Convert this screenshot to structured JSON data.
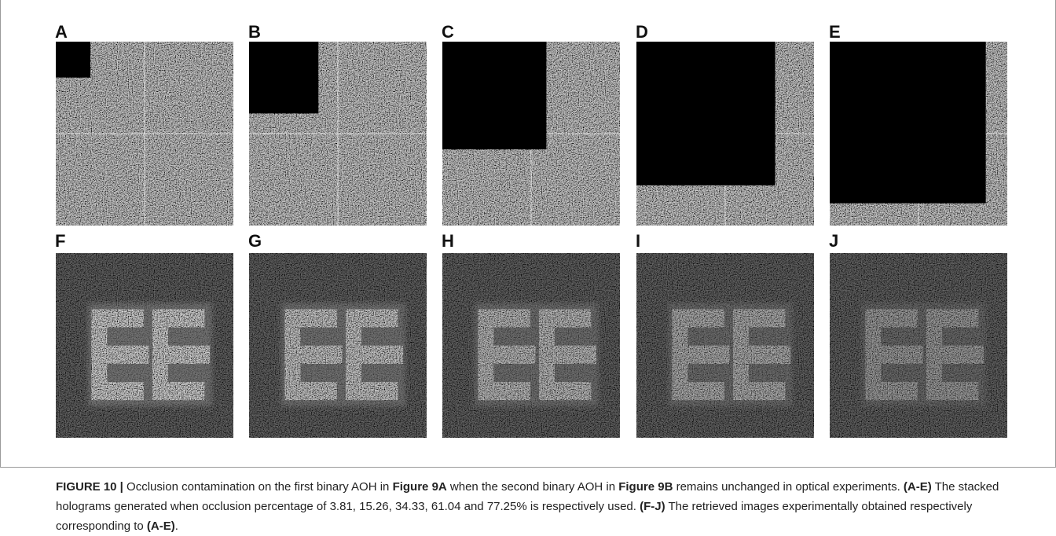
{
  "figure": {
    "panel_labels": [
      "A",
      "B",
      "C",
      "D",
      "E",
      "F",
      "G",
      "H",
      "I",
      "J"
    ],
    "caption": [
      {
        "text": "FIGURE 10 |",
        "bold": true
      },
      {
        "text": " Occlusion contamination on the first binary AOH in "
      },
      {
        "text": "Figure 9A",
        "bold": true
      },
      {
        "text": " when the second binary AOH in "
      },
      {
        "text": "Figure 9B",
        "bold": true
      },
      {
        "text": " remains unchanged in optical experiments. "
      },
      {
        "text": "(A-E)",
        "bold": true
      },
      {
        "text": " The stacked holograms generated when occlusion percentage of "
      },
      {
        "text": 3.81
      },
      {
        "text": ", "
      },
      {
        "text": 15.26
      },
      {
        "text": ", "
      },
      {
        "text": 34.33
      },
      {
        "text": ", "
      },
      {
        "text": 61.04
      },
      {
        "text": " and "
      },
      {
        "text": 77.25
      },
      {
        "text": "% is respectively used. "
      },
      {
        "text": "(F-J)",
        "bold": true
      },
      {
        "text": " The retrieved images experimentally obtained respectively corresponding to "
      },
      {
        "text": "(A-E)",
        "bold": true
      },
      {
        "text": "."
      }
    ]
  }
}
